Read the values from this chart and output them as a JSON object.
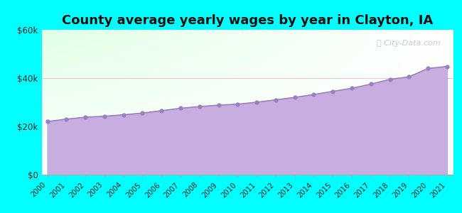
{
  "title": "County average yearly wages by year in Clayton, IA",
  "years": [
    2000,
    2001,
    2002,
    2003,
    2004,
    2005,
    2006,
    2007,
    2008,
    2009,
    2010,
    2011,
    2012,
    2013,
    2014,
    2015,
    2016,
    2017,
    2018,
    2019,
    2020,
    2021
  ],
  "wages": [
    22000,
    23000,
    23800,
    24200,
    24800,
    25500,
    26500,
    27500,
    28200,
    28800,
    29200,
    30000,
    31000,
    32000,
    33200,
    34500,
    35800,
    37500,
    39500,
    40500,
    44000,
    44800
  ],
  "ylim": [
    0,
    60000
  ],
  "yticks": [
    0,
    20000,
    40000,
    60000
  ],
  "ytick_labels": [
    "$0",
    "$20k",
    "$40k",
    "$60k"
  ],
  "bg_outer": "#00FFFF",
  "fill_color": "#c8aee0",
  "line_color": "#9b7fbe",
  "marker_color": "#9b7fbe",
  "grid_color": "#e8c8d0",
  "title_fontsize": 13,
  "watermark": "City-Data.com"
}
